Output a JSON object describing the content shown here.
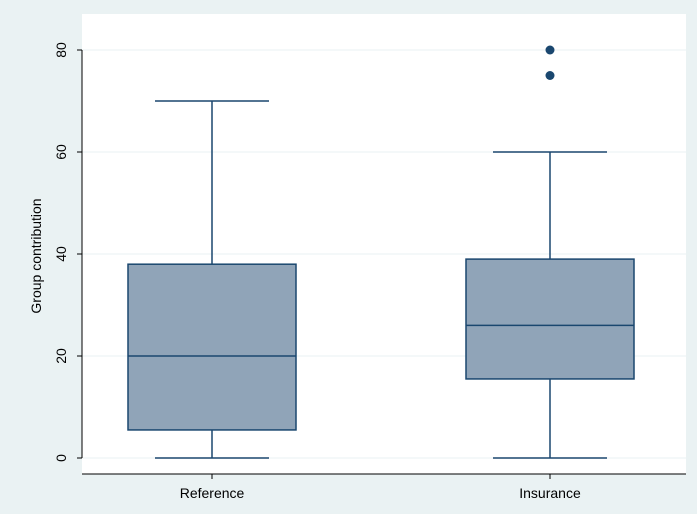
{
  "chart_data": {
    "type": "box",
    "title": "",
    "xlabel": "",
    "ylabel": "Group contribution",
    "ylim": [
      -2,
      83
    ],
    "yticks": [
      0,
      20,
      40,
      60,
      80
    ],
    "grid": true,
    "legend": "none",
    "categories": [
      "Reference",
      "Insurance"
    ],
    "boxes": [
      {
        "category": "Reference",
        "whisker_low": 0,
        "q1": 5.5,
        "median": 20,
        "q3": 38,
        "whisker_high": 70,
        "outliers": []
      },
      {
        "category": "Insurance",
        "whisker_low": 0,
        "q1": 15.5,
        "median": 26,
        "q3": 39,
        "whisker_high": 60,
        "outliers": [
          75,
          80
        ]
      }
    ],
    "colors": {
      "background": "#eaf2f3",
      "plot_area": "#ffffff",
      "grid": "#eaf2f3",
      "box_fill": "#90a4b8",
      "line": "#1a476f",
      "outlier": "#1a476f"
    }
  }
}
